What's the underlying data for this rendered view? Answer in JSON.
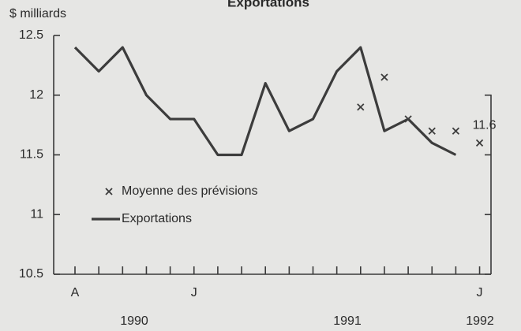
{
  "chart_data": {
    "type": "line",
    "title": "Exportations",
    "y_label": "$ milliards",
    "categories": [
      "A",
      null,
      null,
      null,
      null,
      "J",
      null,
      null,
      null,
      null,
      null,
      null,
      null,
      null,
      null,
      null,
      null,
      "J"
    ],
    "year_labels": [
      "1990",
      "1991",
      "1992"
    ],
    "series": [
      {
        "name": "Exportations",
        "color": "#3c3c3c",
        "marker": "line",
        "values": [
          12.4,
          12.2,
          12.4,
          12.0,
          11.8,
          11.8,
          11.5,
          11.5,
          12.1,
          11.7,
          11.8,
          12.2,
          12.4,
          11.7,
          11.8,
          11.6,
          11.5,
          null
        ]
      },
      {
        "name": "Moyenne des prévisions",
        "color": "#3c3c3c",
        "marker": "x",
        "values": [
          null,
          null,
          null,
          null,
          null,
          null,
          null,
          null,
          null,
          null,
          null,
          null,
          11.9,
          12.15,
          11.8,
          11.7,
          11.7,
          11.6
        ],
        "value_labels": [
          null,
          null,
          null,
          null,
          null,
          null,
          null,
          null,
          null,
          null,
          null,
          null,
          null,
          null,
          null,
          null,
          null,
          "11.6"
        ]
      }
    ],
    "ylim": [
      10.5,
      12.5
    ],
    "yticks": [
      10.5,
      11.0,
      11.5,
      12.0,
      12.5
    ],
    "legend": "lower left"
  }
}
